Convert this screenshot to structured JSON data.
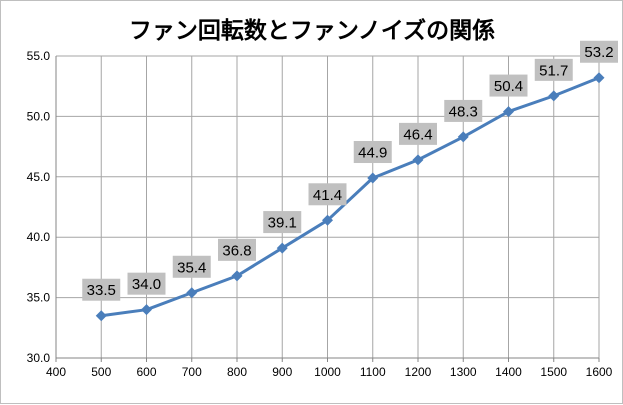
{
  "chart_data": {
    "type": "line",
    "title": "ファン回転数とファンノイズの関係",
    "x": [
      500,
      600,
      700,
      800,
      900,
      1000,
      1100,
      1200,
      1300,
      1400,
      1500,
      1600
    ],
    "series": [
      {
        "values": [
          33.5,
          34.0,
          35.4,
          36.8,
          39.1,
          41.4,
          44.9,
          46.4,
          48.3,
          50.4,
          51.7,
          53.2
        ],
        "data_labels": [
          "33.5",
          "34.0",
          "35.4",
          "36.8",
          "39.1",
          "41.4",
          "44.9",
          "46.4",
          "48.3",
          "50.4",
          "51.7",
          "53.2"
        ],
        "color": "#4a7ebb",
        "marker": "diamond"
      }
    ],
    "x_ticks": [
      "400",
      "500",
      "600",
      "700",
      "800",
      "900",
      "1000",
      "1100",
      "1200",
      "1300",
      "1400",
      "1500",
      "1600"
    ],
    "y_ticks": [
      "30.0",
      "35.0",
      "40.0",
      "45.0",
      "50.0",
      "55.0"
    ],
    "xlim": [
      400,
      1600
    ],
    "ylim": [
      30,
      55
    ],
    "grid": true,
    "legend": "none",
    "data_label_background": "#c0c0c0",
    "grid_color": "#a6a6a6"
  }
}
